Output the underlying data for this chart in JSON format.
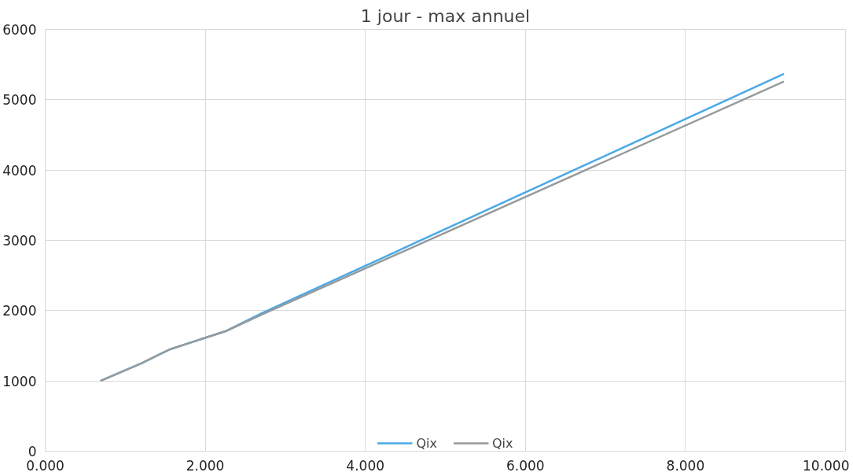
{
  "chart_data": {
    "type": "line",
    "title": "1 jour - max annuel",
    "x": [
      0.69,
      1.2,
      1.56,
      2.26,
      2.7,
      9.23
    ],
    "series": [
      {
        "name": "Qix",
        "color": "#4aa9e6",
        "values": [
          1000,
          1250,
          1450,
          1710,
          1960,
          5370
        ]
      },
      {
        "name": "Qix",
        "color": "#969a9c",
        "values": [
          1000,
          1250,
          1450,
          1710,
          1940,
          5260
        ]
      }
    ],
    "xlim": [
      0,
      10
    ],
    "xticks": [
      {
        "value": 0,
        "label": "0.000"
      },
      {
        "value": 2,
        "label": "2.000"
      },
      {
        "value": 4,
        "label": "4.000"
      },
      {
        "value": 6,
        "label": "6.000"
      },
      {
        "value": 8,
        "label": "8.000"
      },
      {
        "value": 10,
        "label": "10.000"
      }
    ],
    "ylim": [
      0,
      6000
    ],
    "yticks": [
      0,
      1000,
      2000,
      3000,
      4000,
      5000,
      6000
    ],
    "grid": true,
    "legend": "bottom",
    "marker": "none",
    "line_style": "solid"
  }
}
